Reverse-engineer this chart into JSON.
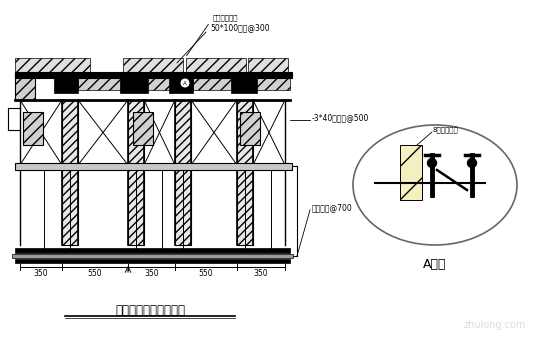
{
  "bg_color": "#ffffff",
  "line_color": "#000000",
  "title_main": "阶梯教室梁板支撑系统",
  "title_detail": "A大样",
  "annotation1": "预排钢楞布置",
  "annotation2": "50*100木枋@300",
  "annotation3": "-3*40南侧枋@500",
  "annotation4": "搁置支枋@700",
  "annotation5": "8拆链条穿孔",
  "dim1": "350",
  "dim2": "550",
  "dim3": "350",
  "dim4": "550",
  "dim5": "350",
  "watermark": "zhulong.com",
  "fig_width": 5.6,
  "fig_height": 3.44,
  "dpi": 100
}
